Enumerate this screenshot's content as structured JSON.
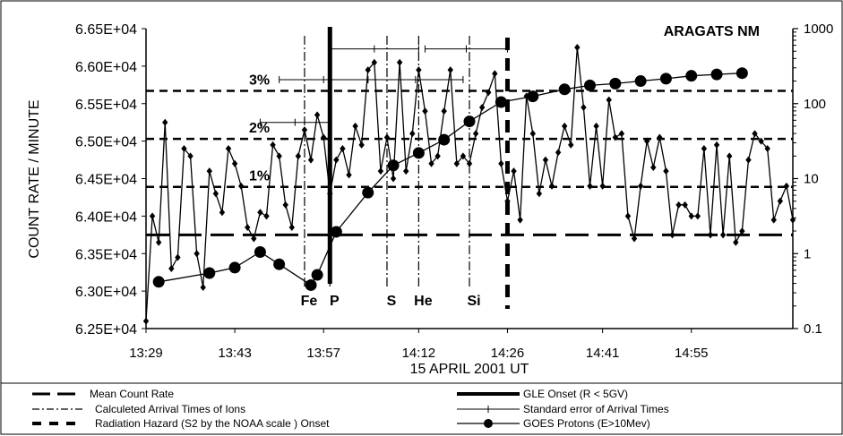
{
  "chart_data": {
    "type": "line",
    "title": "ARAGATS NM",
    "xlabel": "15 APRIL 2001 UT",
    "ylabel": "COUNT  RATE / MINUTE",
    "x_ticks": [
      "13:29",
      "13:43",
      "13:57",
      "14:12",
      "14:26",
      "14:41",
      "14:55"
    ],
    "x_tick_minutes": [
      809,
      823,
      837,
      852,
      866,
      881,
      895
    ],
    "x_range_minutes": [
      809,
      911
    ],
    "y_left": {
      "ticks": [
        "6.25E+04",
        "6.30E+04",
        "6.35E+04",
        "6.40E+04",
        "6.45E+04",
        "6.50E+04",
        "6.55E+04",
        "6.60E+04",
        "6.65E+04"
      ],
      "range": [
        62500,
        66500
      ]
    },
    "y_right": {
      "scale": "log",
      "ticks": [
        "0.1",
        "1",
        "10",
        "100",
        "1000"
      ],
      "range": [
        0.1,
        1000
      ]
    },
    "grid": false,
    "series": [
      {
        "name": "Count rate",
        "marker": "diamond",
        "x_minutes": [
          809,
          810,
          811,
          812,
          813,
          814,
          815,
          816,
          817,
          818,
          819,
          820,
          821,
          822,
          823,
          824,
          825,
          826,
          827,
          828,
          829,
          830,
          831,
          832,
          833,
          834,
          835,
          836,
          837,
          838,
          839,
          840,
          841,
          842,
          843,
          844,
          845,
          846,
          847,
          848,
          849,
          850,
          851,
          852,
          853,
          854,
          855,
          856,
          857,
          858,
          859,
          860,
          861,
          862,
          863,
          864,
          865,
          866,
          867,
          868,
          869,
          870,
          871,
          872,
          873,
          874,
          875,
          876,
          877,
          878,
          879,
          880,
          881,
          882,
          883,
          884,
          885,
          886,
          887,
          888,
          889,
          890,
          891,
          892,
          893,
          894,
          895,
          896,
          897,
          898,
          899,
          900,
          901,
          902,
          903,
          904,
          905,
          906,
          907,
          908,
          909,
          910,
          911
        ],
        "values": [
          62600,
          64000,
          63650,
          65250,
          63300,
          63450,
          64900,
          64800,
          63500,
          63050,
          64600,
          64300,
          64050,
          64900,
          64700,
          64400,
          63850,
          63700,
          64050,
          64000,
          64950,
          64800,
          64150,
          63850,
          64800,
          65150,
          64750,
          65350,
          65050,
          64300,
          64750,
          64900,
          64550,
          65200,
          64950,
          65950,
          66050,
          64600,
          65050,
          64500,
          66050,
          64600,
          65100,
          65950,
          65400,
          64700,
          64800,
          65400,
          65950,
          64700,
          64800,
          64700,
          65100,
          65450,
          65650,
          65900,
          64700,
          64200,
          64600,
          63950,
          65600,
          65100,
          64300,
          64750,
          64400,
          64850,
          65200,
          64950,
          66250,
          65450,
          64400,
          65200,
          64400,
          65550,
          65050,
          65100,
          64000,
          63700,
          64400,
          65000,
          64650,
          65050,
          64600,
          63750,
          64150,
          64150,
          64000,
          64000,
          64900,
          63750,
          64950,
          63750,
          64800,
          63650,
          63800,
          64750,
          65100,
          65000,
          64900,
          63950,
          64200,
          64400,
          63950
        ]
      },
      {
        "name": "GOES Protons (E>10Mev)",
        "marker": "circle",
        "x_minutes": [
          811,
          819,
          823,
          827,
          830,
          835,
          836,
          839,
          844,
          848,
          852,
          856,
          860,
          865,
          870,
          875,
          879,
          883,
          887,
          891,
          895,
          899,
          903
        ],
        "values": [
          0.42,
          0.55,
          0.65,
          1.05,
          0.72,
          0.38,
          0.52,
          1.95,
          6.5,
          15,
          22,
          33,
          58,
          105,
          125,
          155,
          175,
          185,
          200,
          215,
          235,
          245,
          255
        ]
      }
    ],
    "mean_count_rate": 63750,
    "percent_levels": [
      {
        "label": "1%",
        "value": 64390
      },
      {
        "label": "2%",
        "value": 65030
      },
      {
        "label": "3%",
        "value": 65670
      }
    ],
    "gle_onset_minute": 838,
    "radiation_hazard_onset_minute": 866,
    "ion_arrivals": [
      {
        "label": "Fe",
        "minute": 834
      },
      {
        "label": "P",
        "minute": 838
      },
      {
        "label": "S",
        "minute": 847
      },
      {
        "label": "He",
        "minute": 852
      },
      {
        "label": "Si",
        "minute": 860
      }
    ],
    "error_bars": [
      {
        "y": 65250,
        "x_start": 827,
        "x_end": 838
      },
      {
        "y": 65820,
        "x_start": 830,
        "x_end": 844
      },
      {
        "y": 66230,
        "x_start": 838,
        "x_end": 852
      },
      {
        "y": 65820,
        "x_start": 844,
        "x_end": 859
      },
      {
        "y": 66230,
        "x_start": 853,
        "x_end": 866
      }
    ],
    "legend": {
      "placement": "bottom",
      "items": [
        {
          "label": "Mean Count Rate",
          "style": "long-dash"
        },
        {
          "label": "GLE Onset (R < 5GV)",
          "style": "thick-solid"
        },
        {
          "label": "Calculeted Arrival Times of Ions",
          "style": "dash-dot"
        },
        {
          "label": "Standard error of Arrival Times",
          "style": "error-bar"
        },
        {
          "label": "Radiation Hazard (S2 by the NOAA scale ) Onset",
          "style": "heavy-dash"
        },
        {
          "label": "GOES Protons (E>10Mev)",
          "style": "circle-line"
        }
      ]
    }
  }
}
